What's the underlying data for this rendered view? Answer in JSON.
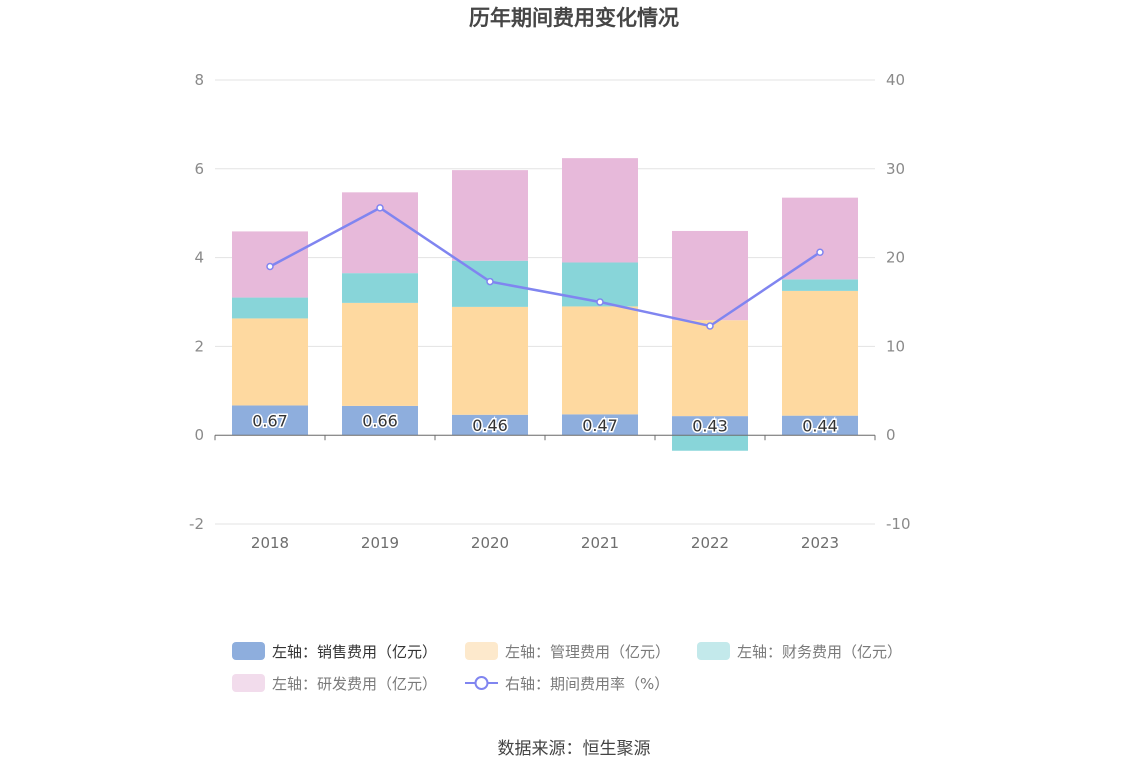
{
  "chart_data": {
    "type": "bar",
    "title": "历年期间费用变化情况",
    "categories": [
      "2018",
      "2019",
      "2020",
      "2021",
      "2022",
      "2023"
    ],
    "stacked": true,
    "y_left": {
      "ylim": [
        -2,
        8
      ],
      "ticks": [
        "-2",
        "0",
        "2",
        "4",
        "6",
        "8"
      ]
    },
    "y_right": {
      "ylim": [
        -10,
        40
      ],
      "ticks": [
        "-10",
        "0",
        "10",
        "20",
        "30",
        "40"
      ]
    },
    "grid": true,
    "series": [
      {
        "name": "左轴：销售费用（亿元）",
        "axis": "left",
        "type": "bar",
        "color": "#8eaedd",
        "legend_color": "#8eaedd",
        "values": [
          0.67,
          0.66,
          0.46,
          0.47,
          0.43,
          0.44
        ],
        "labels": [
          "0.67",
          "0.66",
          "0.46",
          "0.47",
          "0.43",
          "0.44"
        ]
      },
      {
        "name": "左轴：管理费用（亿元）",
        "axis": "left",
        "type": "bar",
        "color": "#fed9a0",
        "legend_color": "#fde9cc",
        "values": [
          1.96,
          2.32,
          2.43,
          2.43,
          2.16,
          2.81
        ]
      },
      {
        "name": "左轴：财务费用（亿元）",
        "axis": "left",
        "type": "bar",
        "color": "#88d5d9",
        "legend_color": "#c3e9eb",
        "values": [
          0.47,
          0.67,
          1.04,
          0.99,
          -0.35,
          0.26
        ]
      },
      {
        "name": "左轴：研发费用（亿元）",
        "axis": "left",
        "type": "bar",
        "color": "#e7b9da",
        "legend_color": "#f2dcec",
        "values": [
          1.49,
          1.82,
          2.04,
          2.35,
          2.01,
          1.84
        ]
      },
      {
        "name": "右轴：期间费用率（%）",
        "axis": "right",
        "type": "line",
        "color": "#8085f0",
        "values": [
          19.0,
          25.6,
          17.3,
          15.0,
          12.3,
          20.6
        ]
      }
    ],
    "legend_position": "bottom"
  },
  "source": "数据来源：恒生聚源"
}
